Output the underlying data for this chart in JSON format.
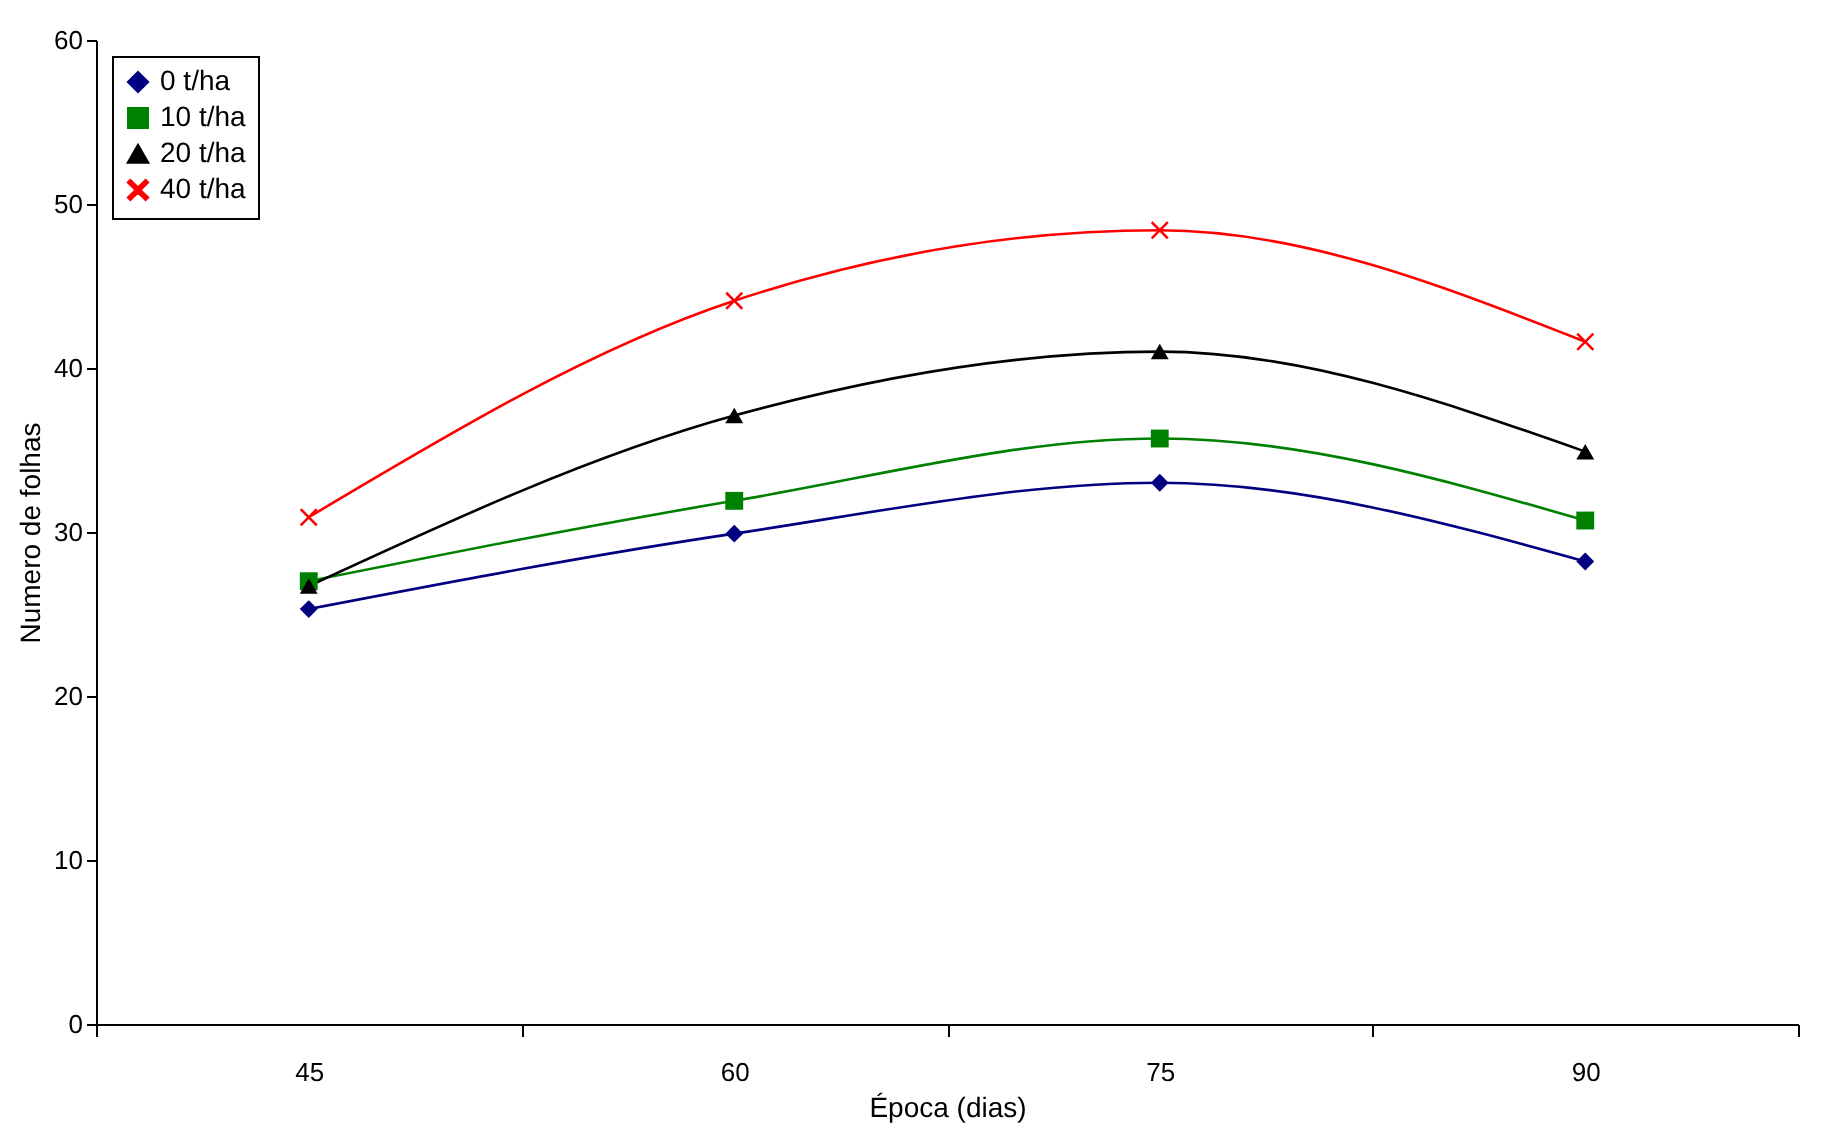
{
  "chart_data": {
    "type": "line",
    "xlabel": "Época (dias)",
    "ylabel": "Numero de folhas",
    "categories": [
      "45",
      "60",
      "75",
      "90"
    ],
    "series": [
      {
        "name": "0 t/ha",
        "color": "#000080",
        "marker": "diamond",
        "values": [
          25.3,
          29.9,
          33.0,
          28.2
        ]
      },
      {
        "name": "10 t/ha",
        "color": "#008000",
        "marker": "square",
        "values": [
          27.0,
          31.9,
          35.7,
          30.7
        ]
      },
      {
        "name": "20 t/ha",
        "color": "#000000",
        "marker": "triangle",
        "values": [
          26.7,
          37.1,
          41.0,
          34.9
        ]
      },
      {
        "name": "40 t/ha",
        "color": "#ff0000",
        "marker": "cross",
        "values": [
          30.9,
          44.1,
          48.4,
          41.6
        ]
      }
    ],
    "ylim": [
      0,
      60
    ],
    "yticks": [
      0,
      10,
      20,
      30,
      40,
      50,
      60
    ],
    "grid": false,
    "legend": "top left",
    "line_style": "solid"
  }
}
